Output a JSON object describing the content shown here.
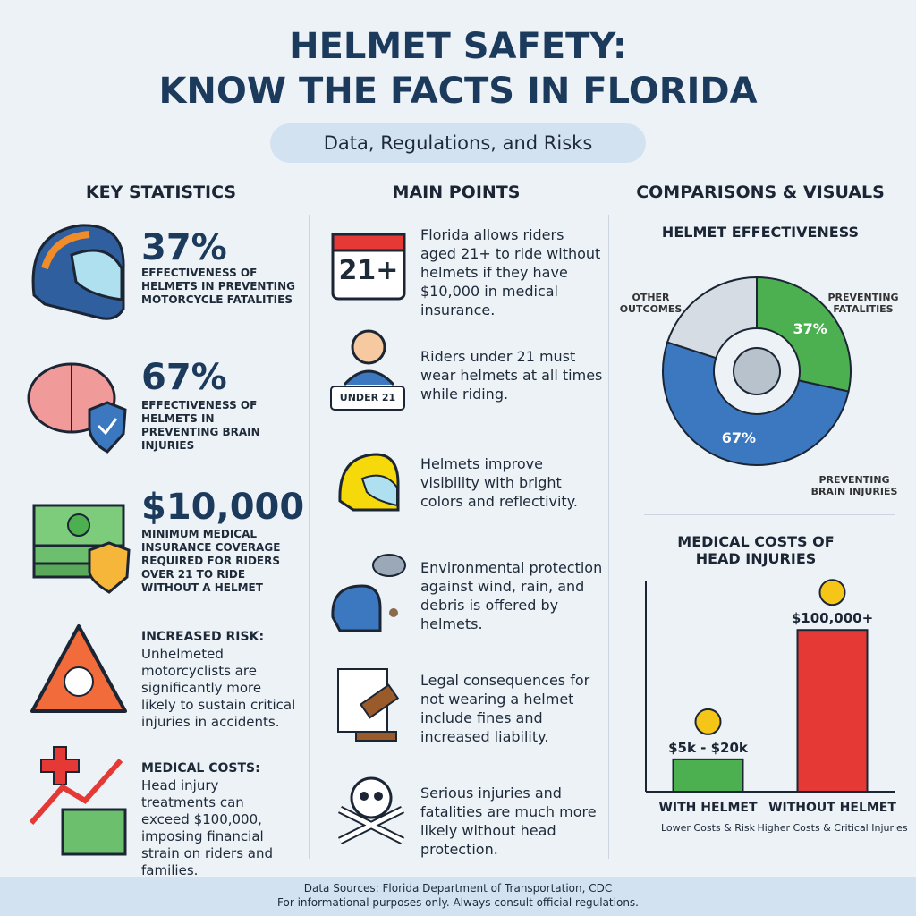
{
  "header": {
    "title_lines": [
      "HELMET SAFETY:",
      "KNOW THE FACTS IN FLORIDA"
    ],
    "subtitle": "Data, Regulations, and Risks"
  },
  "columns": [
    "KEY STATISTICS",
    "MAIN POINTS",
    "COMPARISONS & VISUALS"
  ],
  "key_statistics": [
    {
      "headline": "37%",
      "text": "EFFECTIVENESS OF HELMETS IN PREVENTING MOTORCYCLE FATALITIES"
    },
    {
      "headline": "67%",
      "text": "EFFECTIVENESS OF HELMETS IN PREVENTING BRAIN INJURIES"
    },
    {
      "headline": "$10,000",
      "text": "MINIMUM MEDICAL INSURANCE COVERAGE REQUIRED FOR RIDERS OVER 21 TO RIDE WITHOUT A HELMET"
    },
    {
      "heading": "INCREASED RISK:",
      "text": "Unhelmeted motorcyclists are significantly more likely to sustain critical injuries in accidents."
    },
    {
      "heading": "MEDICAL COSTS:",
      "text": "Head injury treatments can exceed $100,000, imposing financial strain on riders and families."
    }
  ],
  "main_points": [
    {
      "icon_label": "21+",
      "text": "Florida allows riders aged 21+ to ride without helmets if they have $10,000 in medical insurance."
    },
    {
      "icon_label": "UNDER 21",
      "text": "Riders under 21 must wear helmets at all times while riding."
    },
    {
      "text": "Helmets improve visibility with bright colors and reflectivity."
    },
    {
      "text": "Environmental protection against wind, rain, and debris is offered by helmets."
    },
    {
      "text": "Legal consequences for not wearing a helmet include fines and increased liability."
    },
    {
      "text": "Serious injuries and fatalities are much more likely without head protection."
    }
  ],
  "chart_data": [
    {
      "type": "donut",
      "title": "HELMET EFFECTIVENESS",
      "categories": [
        "PREVENTING FATALITIES",
        "PREVENTING BRAIN INJURIES"
      ],
      "values": [
        37,
        67
      ],
      "value_labels": [
        "37%",
        "67%"
      ],
      "colors": [
        "#4caf50",
        "#3b78c0"
      ],
      "other_label": "OTHER OUTCOMES",
      "other_color": "#d6dce3"
    },
    {
      "type": "bar",
      "title": "MEDICAL COSTS OF HEAD INJURIES",
      "categories": [
        "WITH HELMET",
        "WITHOUT HELMET"
      ],
      "sublabels": [
        "Lower Costs & Risk",
        "Higher Costs & Critical Injuries"
      ],
      "values": [
        20000,
        100000
      ],
      "value_labels": [
        "$5k - $20k",
        "$100,000+"
      ],
      "colors": [
        "#4caf50",
        "#e53935"
      ],
      "ylim": [
        0,
        130000
      ]
    }
  ],
  "footer": [
    "Data Sources: Florida Department of Transportation, CDC",
    "For informational purposes only. Always consult official regulations."
  ]
}
